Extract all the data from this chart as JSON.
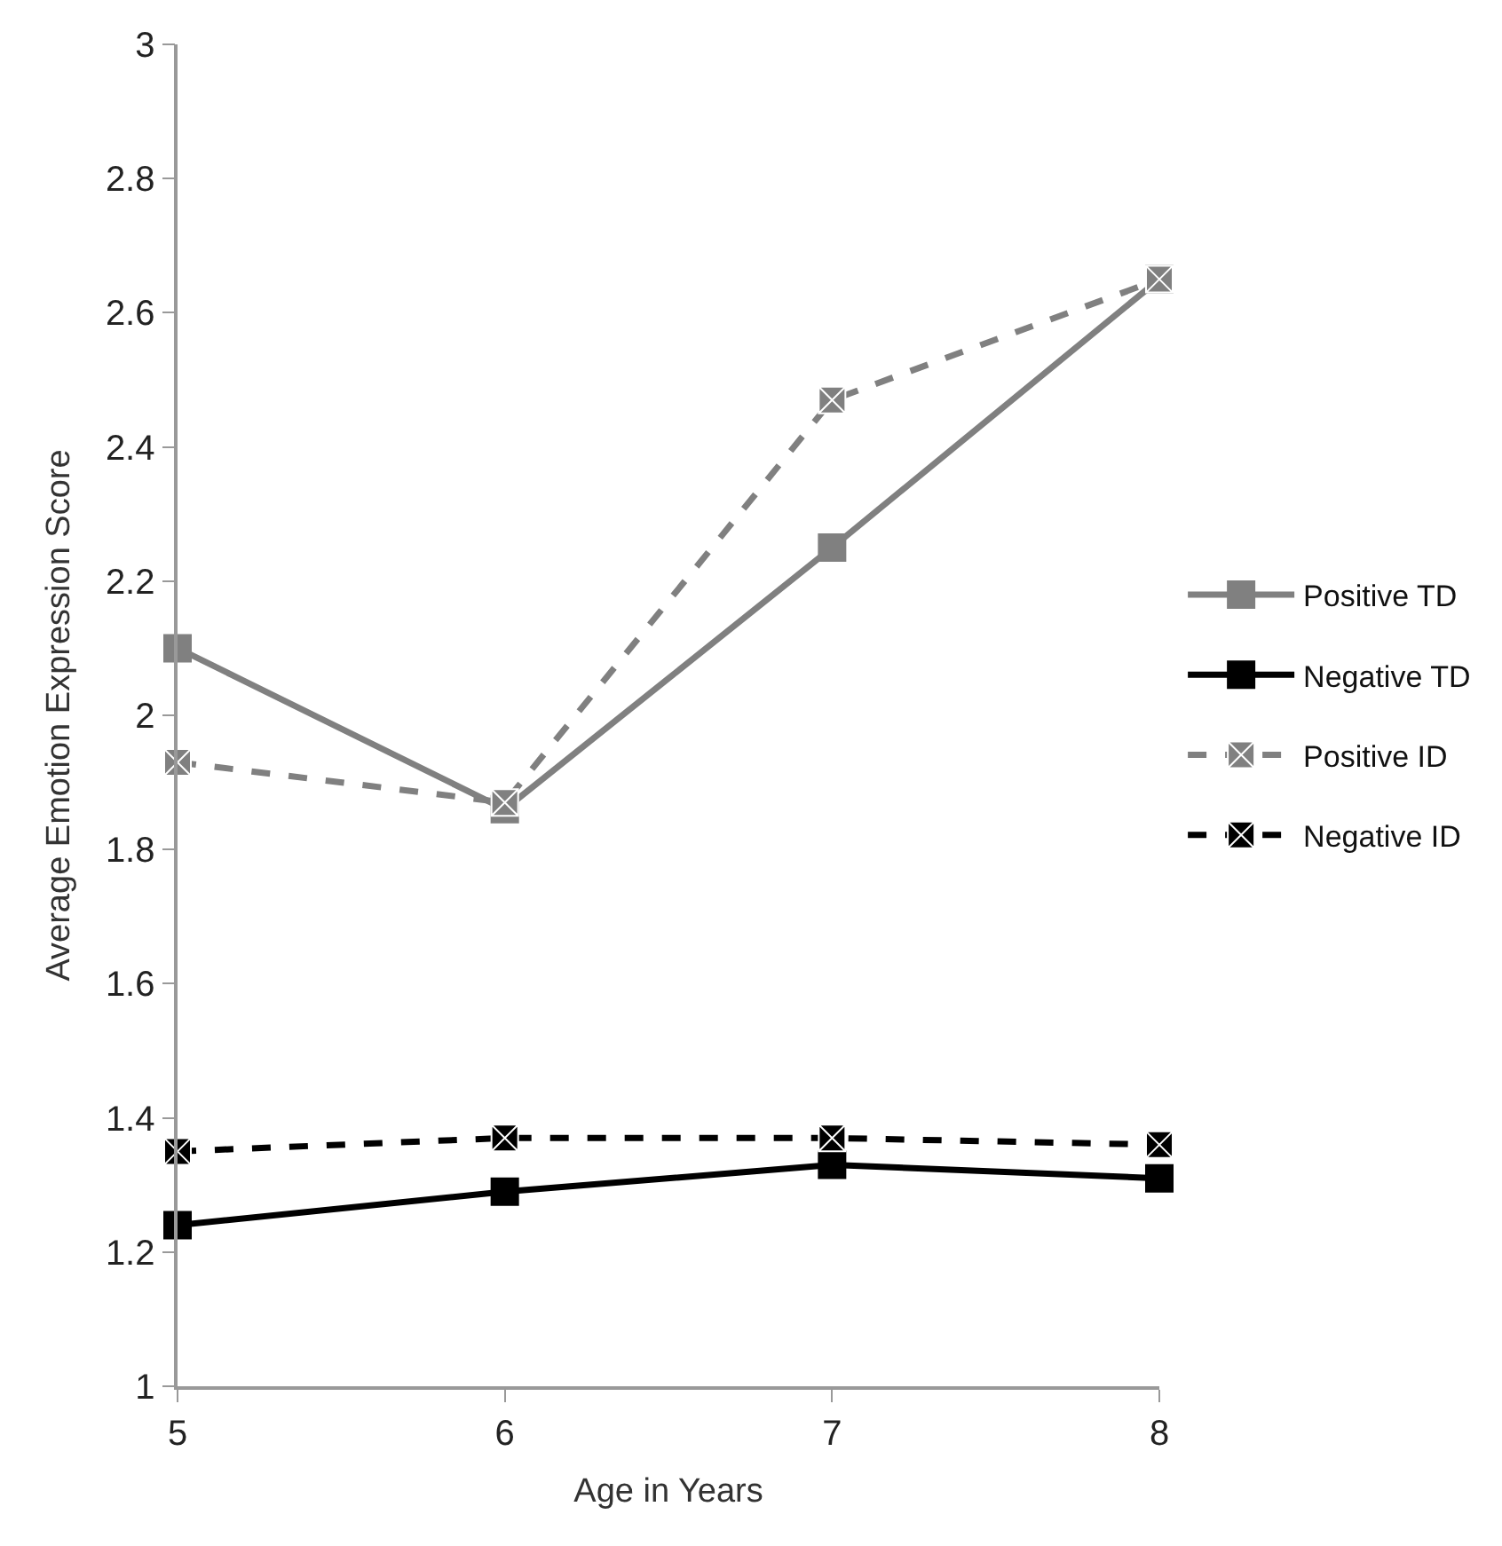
{
  "chart_data": {
    "type": "line",
    "xlabel": "Age in Years",
    "ylabel": "Average Emotion Expression Score",
    "x": [
      5,
      6,
      7,
      8
    ],
    "xlim": [
      5,
      8
    ],
    "xticks": [
      5,
      6,
      7,
      8
    ],
    "ylim": [
      1,
      3
    ],
    "yticks": [
      1,
      1.2,
      1.4,
      1.6,
      1.8,
      2,
      2.2,
      2.4,
      2.6,
      2.8,
      3
    ],
    "legend": "right",
    "series": [
      {
        "name": "Positive TD",
        "color": "#808080",
        "values": [
          2.1,
          1.86,
          2.25,
          2.65
        ],
        "marker": "square",
        "line_style": "solid"
      },
      {
        "name": "Negative TD",
        "color": "#000000",
        "values": [
          1.24,
          1.29,
          1.33,
          1.31
        ],
        "marker": "square",
        "line_style": "solid"
      },
      {
        "name": "Positive ID",
        "color": "#808080",
        "values": [
          1.93,
          1.87,
          2.47,
          2.65
        ],
        "marker": "cross",
        "line_style": "dashed"
      },
      {
        "name": "Negative ID",
        "color": "#000000",
        "values": [
          1.35,
          1.37,
          1.37,
          1.36
        ],
        "marker": "cross",
        "line_style": "dashed"
      }
    ]
  }
}
